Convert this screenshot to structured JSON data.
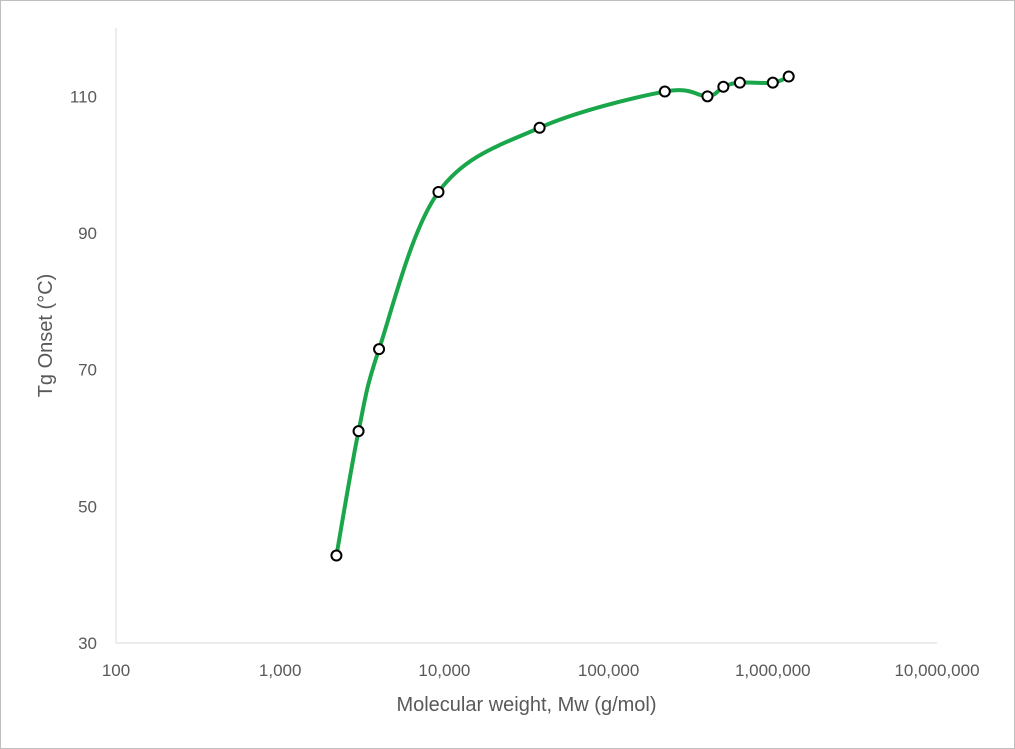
{
  "chart_data": {
    "type": "scatter",
    "title": "",
    "xlabel": "Molecular weight, Mw (g/mol)",
    "ylabel": "Tg Onset (°C)",
    "xscale": "log",
    "xlim": [
      100,
      10000000
    ],
    "ylim": [
      30,
      120
    ],
    "x_ticks": [
      100,
      1000,
      10000,
      100000,
      1000000,
      10000000
    ],
    "x_tick_labels": [
      "100",
      "1,000",
      "10,000",
      "100,000",
      "1,000,000",
      "10,000,000"
    ],
    "y_ticks": [
      30,
      50,
      70,
      90,
      110
    ],
    "y_tick_labels": [
      "30",
      "50",
      "70",
      "90",
      "110"
    ],
    "grid": false,
    "legend": "none",
    "line_style": "smoothed",
    "line_color": "#1aa64a",
    "marker": "open-circle",
    "series": [
      {
        "x": [
          2200,
          3000,
          4000,
          9200,
          38000,
          220000,
          400000,
          500000,
          630000,
          1000000,
          1250000
        ],
        "y": [
          42.8,
          61.0,
          73.0,
          96.0,
          105.4,
          110.7,
          110.0,
          111.4,
          112.0,
          112.0,
          112.9
        ]
      }
    ]
  }
}
